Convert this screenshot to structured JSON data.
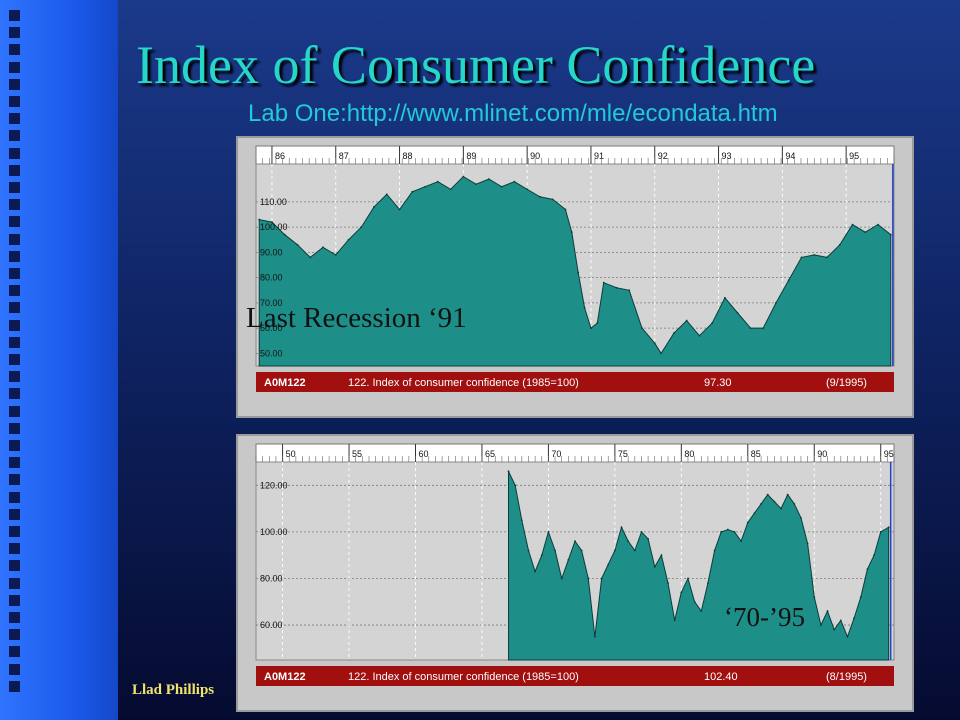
{
  "slide": {
    "title": "Index of Consumer Confidence",
    "subtitle": "Lab One:http://www.mlinet.com/mle/econdata.htm",
    "author": "Llad Phillips",
    "annotation_top": "Last Recession ‘91",
    "annotation_bottom": "‘70-’95"
  },
  "colors": {
    "fill": "#1e8f88",
    "plot_bg_top": "#cfcfcf",
    "statusbar": "#a10f0f",
    "title": "#26d6c8"
  },
  "chart_data": [
    {
      "type": "area",
      "ticks": [
        "86",
        "87",
        "88",
        "89",
        "90",
        "91",
        "92",
        "93",
        "94",
        "95"
      ],
      "ytick_labels": [
        "110.00",
        "100.00",
        "90.00",
        "80.00",
        "70.00",
        "60.00",
        "50.00"
      ],
      "ylim": [
        45,
        125
      ],
      "xlim": [
        1985.75,
        1995.75
      ],
      "series_code": "A0M122",
      "series_title": "122. Index of consumer confidence (1985=100)",
      "last_value": "97.30",
      "last_date": "(9/1995)",
      "points": [
        [
          1985.8,
          103
        ],
        [
          1986.0,
          102
        ],
        [
          1986.2,
          97
        ],
        [
          1986.4,
          93
        ],
        [
          1986.6,
          88
        ],
        [
          1986.8,
          92
        ],
        [
          1987.0,
          89
        ],
        [
          1987.2,
          95
        ],
        [
          1987.4,
          100
        ],
        [
          1987.6,
          108
        ],
        [
          1987.8,
          113
        ],
        [
          1988.0,
          107
        ],
        [
          1988.2,
          114
        ],
        [
          1988.4,
          116
        ],
        [
          1988.6,
          118
        ],
        [
          1988.8,
          115
        ],
        [
          1989.0,
          120
        ],
        [
          1989.2,
          117
        ],
        [
          1989.4,
          119
        ],
        [
          1989.6,
          116
        ],
        [
          1989.8,
          118
        ],
        [
          1990.0,
          115
        ],
        [
          1990.2,
          112
        ],
        [
          1990.4,
          111
        ],
        [
          1990.6,
          107
        ],
        [
          1990.7,
          98
        ],
        [
          1990.8,
          82
        ],
        [
          1990.9,
          68
        ],
        [
          1991.0,
          60
        ],
        [
          1991.1,
          62
        ],
        [
          1991.2,
          78
        ],
        [
          1991.4,
          76
        ],
        [
          1991.6,
          75
        ],
        [
          1991.8,
          60
        ],
        [
          1992.0,
          54
        ],
        [
          1992.1,
          50
        ],
        [
          1992.3,
          58
        ],
        [
          1992.5,
          63
        ],
        [
          1992.7,
          57
        ],
        [
          1992.9,
          62
        ],
        [
          1993.1,
          72
        ],
        [
          1993.3,
          66
        ],
        [
          1993.5,
          60
        ],
        [
          1993.7,
          60
        ],
        [
          1993.9,
          70
        ],
        [
          1994.1,
          79
        ],
        [
          1994.3,
          88
        ],
        [
          1994.5,
          89
        ],
        [
          1994.7,
          88
        ],
        [
          1994.9,
          93
        ],
        [
          1995.1,
          101
        ],
        [
          1995.3,
          98
        ],
        [
          1995.5,
          101
        ],
        [
          1995.7,
          97
        ]
      ]
    },
    {
      "type": "area",
      "ticks": [
        "50",
        "55",
        "60",
        "65",
        "70",
        "75",
        "80",
        "85",
        "90",
        "95"
      ],
      "ytick_labels": [
        "120.00",
        "100.00",
        "80.00",
        "60.00"
      ],
      "ylim": [
        45,
        130
      ],
      "xlim": [
        1948,
        1996
      ],
      "series_code": "A0M122",
      "series_title": "122. Index of consumer confidence (1985=100)",
      "last_value": "102.40",
      "last_date": "(8/1995)",
      "points": [
        [
          1967.0,
          126
        ],
        [
          1967.5,
          120
        ],
        [
          1968.0,
          105
        ],
        [
          1968.5,
          92
        ],
        [
          1969.0,
          83
        ],
        [
          1969.5,
          90
        ],
        [
          1970.0,
          100
        ],
        [
          1970.5,
          92
        ],
        [
          1971.0,
          80
        ],
        [
          1971.5,
          88
        ],
        [
          1972.0,
          96
        ],
        [
          1972.5,
          92
        ],
        [
          1973.0,
          80
        ],
        [
          1973.5,
          55
        ],
        [
          1974.0,
          80
        ],
        [
          1974.5,
          86
        ],
        [
          1975.0,
          92
        ],
        [
          1975.5,
          102
        ],
        [
          1976.0,
          96
        ],
        [
          1976.5,
          92
        ],
        [
          1977.0,
          100
        ],
        [
          1977.5,
          97
        ],
        [
          1978.0,
          85
        ],
        [
          1978.5,
          90
        ],
        [
          1979.0,
          78
        ],
        [
          1979.5,
          62
        ],
        [
          1980.0,
          74
        ],
        [
          1980.5,
          80
        ],
        [
          1981.0,
          70
        ],
        [
          1981.5,
          66
        ],
        [
          1982.0,
          78
        ],
        [
          1982.5,
          92
        ],
        [
          1983.0,
          100
        ],
        [
          1983.5,
          101
        ],
        [
          1984.0,
          100
        ],
        [
          1984.5,
          96
        ],
        [
          1985.0,
          104
        ],
        [
          1985.5,
          108
        ],
        [
          1986.0,
          112
        ],
        [
          1986.5,
          116
        ],
        [
          1987.0,
          113
        ],
        [
          1987.5,
          110
        ],
        [
          1988.0,
          116
        ],
        [
          1988.5,
          112
        ],
        [
          1989.0,
          106
        ],
        [
          1989.5,
          95
        ],
        [
          1990.0,
          72
        ],
        [
          1990.5,
          60
        ],
        [
          1991.0,
          66
        ],
        [
          1991.5,
          58
        ],
        [
          1992.0,
          62
        ],
        [
          1992.5,
          55
        ],
        [
          1993.0,
          63
        ],
        [
          1993.5,
          72
        ],
        [
          1994.0,
          84
        ],
        [
          1994.5,
          90
        ],
        [
          1995.0,
          100
        ],
        [
          1995.6,
          102
        ]
      ]
    }
  ]
}
